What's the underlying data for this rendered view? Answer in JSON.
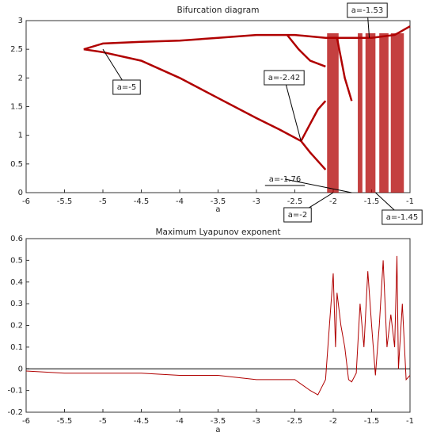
{
  "chart_data": [
    {
      "type": "line",
      "title": "Bifurcation diagram",
      "xlabel": "a",
      "xlim": [
        -6,
        -1
      ],
      "xticks": [
        -6,
        -5.5,
        -5,
        -4.5,
        -4,
        -3.5,
        -3,
        -2.5,
        -2,
        -1.5,
        -1
      ],
      "ylim": [
        0,
        3
      ],
      "yticks": [
        0,
        0.5,
        1,
        1.5,
        2,
        2.5,
        3
      ],
      "color": "#b00000",
      "series": [
        {
          "x": [
            -5.25,
            -5,
            -4.5,
            -4,
            -3.5,
            -3,
            -2.5,
            -2.1,
            -1.9,
            -1.7,
            -1.5,
            -1.2,
            -1
          ],
          "values": [
            2.5,
            2.6,
            2.63,
            2.65,
            2.7,
            2.75,
            2.75,
            2.7,
            2.7,
            2.7,
            2.7,
            2.75,
            2.9
          ]
        },
        {
          "x": [
            -5.25,
            -5,
            -4.5,
            -4,
            -3.5,
            -3,
            -2.7,
            -2.42
          ],
          "values": [
            2.5,
            2.45,
            2.3,
            2.0,
            1.65,
            1.3,
            1.1,
            0.9
          ]
        },
        {
          "x": [
            -2.42,
            -2.3,
            -2.2,
            -2.1
          ],
          "values": [
            0.9,
            0.7,
            0.55,
            0.4
          ]
        },
        {
          "x": [
            -2.42,
            -2.3,
            -2.2,
            -2.1
          ],
          "values": [
            0.9,
            1.2,
            1.45,
            1.6
          ]
        },
        {
          "x": [
            -2.6,
            -2.45,
            -2.3,
            -2.1
          ],
          "values": [
            2.75,
            2.5,
            2.3,
            2.2
          ]
        },
        {
          "x": [
            -1.95,
            -1.85,
            -1.76
          ],
          "values": [
            2.7,
            2.0,
            1.6
          ]
        }
      ],
      "bands": [
        [
          -2.08,
          -1.93,
          0,
          2.78
        ],
        [
          -1.68,
          -1.62,
          0,
          2.78
        ],
        [
          -1.58,
          -1.45,
          0,
          2.78
        ],
        [
          -1.4,
          -1.28,
          0,
          2.78
        ],
        [
          -1.25,
          -1.08,
          0,
          2.78
        ]
      ],
      "annotations": [
        {
          "text": "a=-5",
          "x": -5,
          "y": 2.5
        },
        {
          "text": "a=-2.42",
          "x": -2.42,
          "y": 0.9
        },
        {
          "text": "a=-1.53",
          "x": -1.53,
          "y": 2.7
        },
        {
          "text": "a=-1.76",
          "x": -1.76,
          "y": 0
        },
        {
          "text": "a=-2",
          "x": -2,
          "y": 0
        },
        {
          "text": "a=-1.45",
          "x": -1.45,
          "y": 0
        }
      ]
    },
    {
      "type": "line",
      "title": "Maximum Lyapunov exponent",
      "xlabel": "a",
      "xlim": [
        -6,
        -1
      ],
      "xticks": [
        -6,
        -5.5,
        -5,
        -4.5,
        -4,
        -3.5,
        -3,
        -2.5,
        -2,
        -1.5,
        -1
      ],
      "ylim": [
        -0.2,
        0.6
      ],
      "yticks": [
        -0.2,
        -0.1,
        0,
        0.1,
        0.2,
        0.3,
        0.4,
        0.5,
        0.6
      ],
      "color": "#b00000",
      "zero_line": 0,
      "series": [
        {
          "x": [
            -6,
            -5.5,
            -5,
            -4.5,
            -4,
            -3.5,
            -3,
            -2.5,
            -2.3,
            -2.2,
            -2.1,
            -2.05,
            -2.0,
            -1.97,
            -1.95,
            -1.9,
            -1.85,
            -1.8,
            -1.76,
            -1.7,
            -1.65,
            -1.6,
            -1.55,
            -1.5,
            -1.45,
            -1.4,
            -1.35,
            -1.3,
            -1.25,
            -1.2,
            -1.17,
            -1.15,
            -1.1,
            -1.05,
            -1
          ],
          "values": [
            -0.01,
            -0.02,
            -0.02,
            -0.02,
            -0.03,
            -0.03,
            -0.05,
            -0.05,
            -0.1,
            -0.12,
            -0.05,
            0.2,
            0.44,
            0.1,
            0.35,
            0.2,
            0.1,
            -0.05,
            -0.06,
            -0.02,
            0.3,
            0.1,
            0.45,
            0.2,
            -0.03,
            0.2,
            0.5,
            0.1,
            0.25,
            0.1,
            0.52,
            0.0,
            0.3,
            -0.05,
            -0.03
          ]
        }
      ]
    }
  ]
}
